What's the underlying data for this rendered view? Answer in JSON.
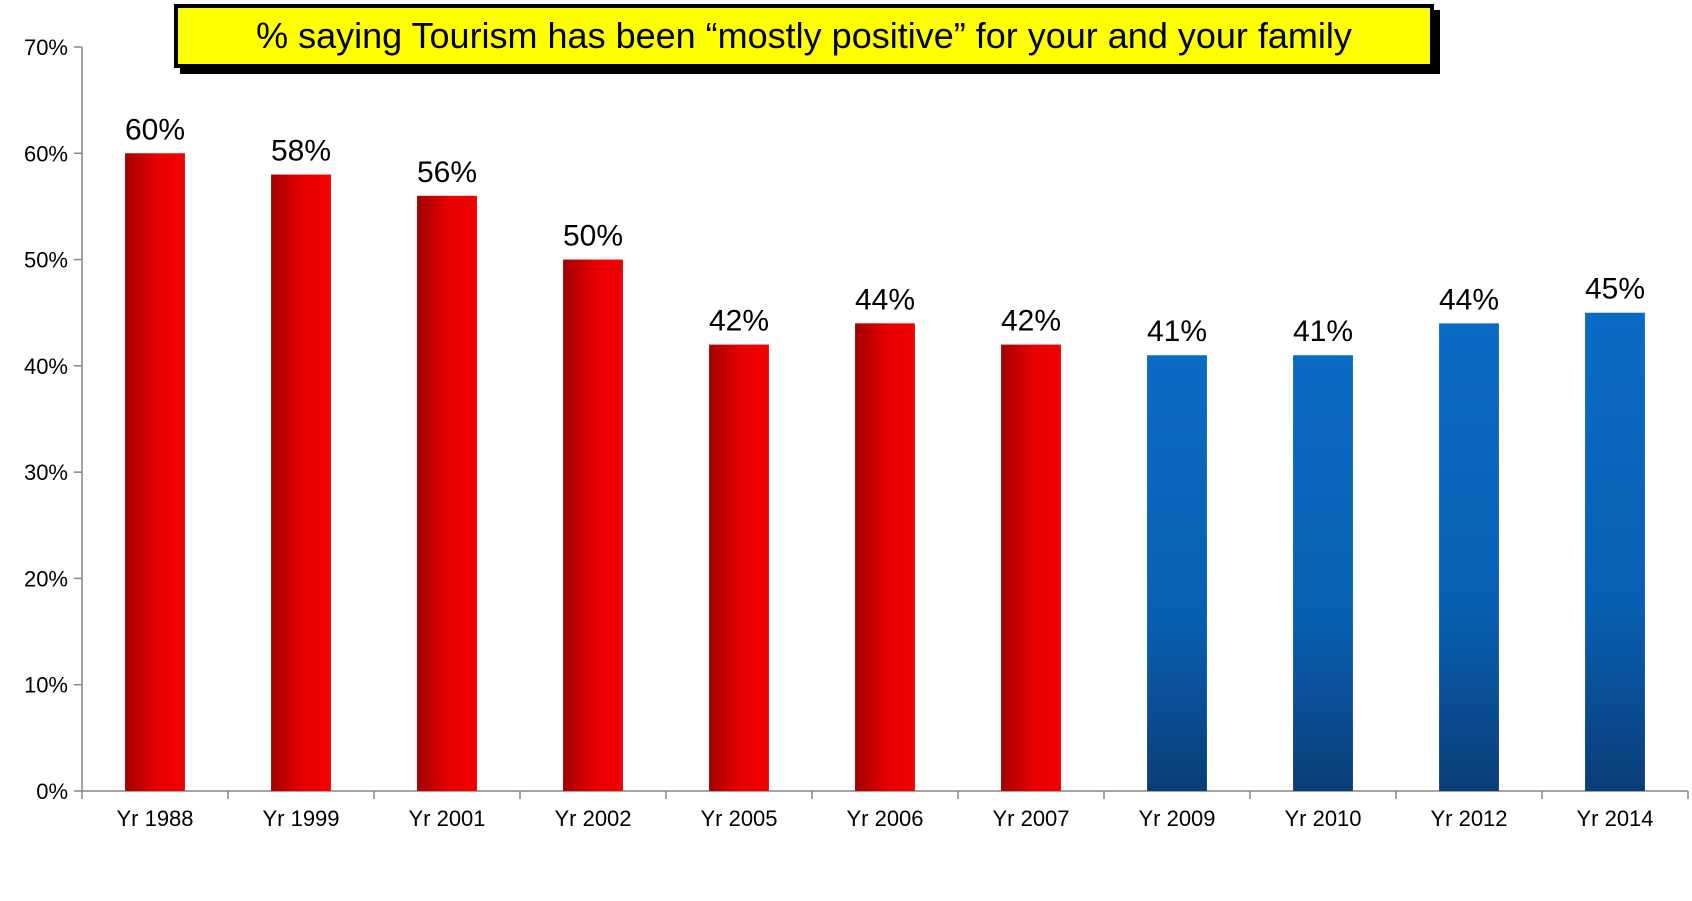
{
  "chart_data": {
    "type": "bar",
    "title": "% saying Tourism has been “mostly positive” for your and your family",
    "categories": [
      "Yr 1988",
      "Yr 1999",
      "Yr 2001",
      "Yr 2002",
      "Yr 2005",
      "Yr 2006",
      "Yr 2007",
      "Yr 2009",
      "Yr 2010",
      "Yr 2012",
      "Yr 2014"
    ],
    "values": [
      60,
      58,
      56,
      50,
      42,
      44,
      42,
      41,
      41,
      44,
      45
    ],
    "value_labels": [
      "60%",
      "58%",
      "56%",
      "50%",
      "42%",
      "44%",
      "42%",
      "41%",
      "41%",
      "44%",
      "45%"
    ],
    "bar_colors": [
      "red",
      "red",
      "red",
      "red",
      "red",
      "red",
      "red",
      "blue",
      "blue",
      "blue",
      "blue"
    ],
    "colors": {
      "red": "#e00000",
      "blue": "#0a6bc4"
    },
    "ylim": [
      0,
      70
    ],
    "yticks": [
      0,
      10,
      20,
      30,
      40,
      50,
      60,
      70
    ],
    "ytick_labels": [
      "0%",
      "10%",
      "20%",
      "30%",
      "40%",
      "50%",
      "60%",
      "70%"
    ],
    "grid": false,
    "legend": "none"
  }
}
